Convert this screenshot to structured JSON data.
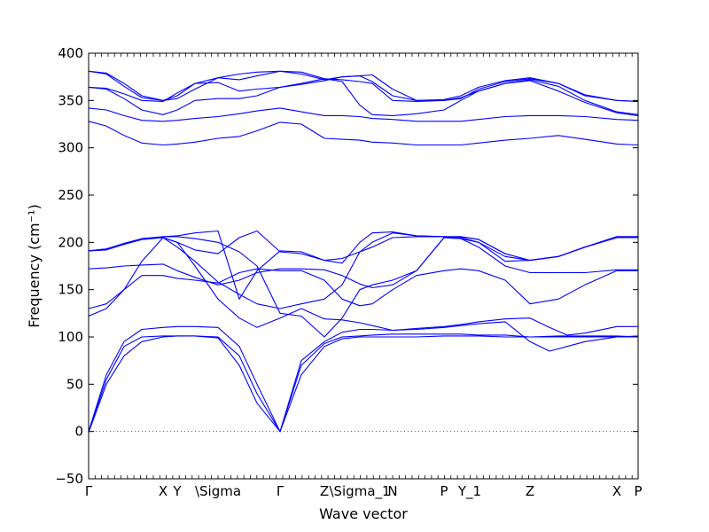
{
  "chart_data": {
    "type": "line",
    "title": "",
    "xlabel": "Wave vector",
    "ylabel": "Frequency (cm⁻¹)",
    "ylim": [
      -50,
      400
    ],
    "yticks": [
      -50,
      0,
      50,
      100,
      150,
      200,
      250,
      300,
      350,
      400
    ],
    "xlim": [
      0,
      620
    ],
    "zero_line": 0,
    "xticks": [
      {
        "label": "Γ",
        "x": 0
      },
      {
        "label": "X",
        "x": 84
      },
      {
        "label": "Y",
        "x": 100
      },
      {
        "label": "\\Sigma",
        "x": 146
      },
      {
        "label": "Γ",
        "x": 216
      },
      {
        "label": "Z",
        "x": 266
      },
      {
        "label": "\\Sigma_1",
        "x": 306
      },
      {
        "label": "N",
        "x": 343
      },
      {
        "label": "P",
        "x": 401
      },
      {
        "label": "Y_1",
        "x": 430
      },
      {
        "label": "Z",
        "x": 498
      },
      {
        "label": "X",
        "x": 596
      },
      {
        "label": "P",
        "x": 620
      }
    ],
    "color": "#0000ff",
    "series": [
      {
        "x": [
          0,
          20,
          40,
          60,
          84,
          100,
          120,
          146,
          170,
          190,
          216,
          240,
          266,
          286,
          306,
          320,
          343,
          370,
          401,
          420,
          440,
          470,
          498,
          530,
          560,
          596,
          620
        ],
        "y": [
          -1,
          50,
          80,
          95,
          100,
          101,
          101,
          100,
          80,
          40,
          0,
          60,
          90,
          98,
          100,
          100,
          100,
          100,
          101,
          101,
          101,
          100,
          100,
          100,
          100,
          100,
          100
        ]
      },
      {
        "x": [
          0,
          20,
          40,
          60,
          84,
          100,
          120,
          146,
          170,
          190,
          216,
          240,
          266,
          286,
          306,
          320,
          343,
          370,
          401,
          420,
          440,
          470,
          498,
          530,
          560,
          596,
          620
        ],
        "y": [
          0,
          55,
          90,
          100,
          101,
          101,
          101,
          99,
          70,
          30,
          0,
          70,
          93,
          100,
          101,
          102,
          103,
          103,
          103,
          103,
          102,
          102,
          100,
          101,
          101,
          101,
          100
        ]
      },
      {
        "x": [
          0,
          20,
          40,
          60,
          84,
          100,
          120,
          146,
          170,
          190,
          216,
          240,
          266,
          286,
          306,
          320,
          343,
          370,
          401,
          420,
          440,
          470,
          498,
          520,
          540,
          560,
          596,
          620
        ],
        "y": [
          0,
          60,
          95,
          108,
          110,
          111,
          111,
          110,
          90,
          50,
          0,
          75,
          95,
          105,
          108,
          108,
          107,
          109,
          111,
          113,
          116,
          119,
          120,
          110,
          102,
          104,
          111,
          111
        ]
      },
      {
        "x": [
          0,
          20,
          40,
          60,
          84,
          100,
          120,
          146,
          170,
          190,
          216,
          240,
          266,
          286,
          306,
          320,
          343,
          370,
          401,
          420,
          440,
          470,
          498,
          520,
          540,
          560,
          596,
          620
        ],
        "y": [
          122,
          130,
          150,
          180,
          205,
          200,
          175,
          140,
          120,
          110,
          120,
          130,
          119,
          118,
          115,
          112,
          107,
          108,
          110,
          112,
          114,
          116,
          95,
          85,
          90,
          95,
          100,
          101
        ]
      },
      {
        "x": [
          0,
          20,
          40,
          60,
          84,
          100,
          120,
          146,
          170,
          190,
          216,
          240,
          266,
          286,
          306,
          320,
          343,
          370,
          401,
          420,
          440,
          470,
          498,
          530,
          560,
          596,
          620
        ],
        "y": [
          130,
          135,
          150,
          165,
          165,
          162,
          160,
          157,
          168,
          172,
          170,
          170,
          160,
          140,
          133,
          135,
          150,
          165,
          170,
          172,
          170,
          160,
          135,
          140,
          155,
          170,
          170
        ]
      },
      {
        "x": [
          0,
          20,
          40,
          60,
          84,
          100,
          120,
          146,
          170,
          190,
          216,
          240,
          266,
          286,
          306,
          320,
          343,
          370,
          401,
          420,
          440,
          470,
          498,
          530,
          560,
          596,
          620
        ],
        "y": [
          172,
          173,
          175,
          176,
          177,
          170,
          163,
          155,
          160,
          168,
          172,
          172,
          171,
          165,
          156,
          152,
          155,
          170,
          205,
          204,
          195,
          175,
          168,
          168,
          168,
          171,
          171
        ]
      },
      {
        "x": [
          0,
          20,
          40,
          60,
          84,
          100,
          120,
          146,
          170,
          190,
          216,
          240,
          266,
          286,
          306,
          320,
          343,
          370,
          401,
          420,
          440,
          470,
          498,
          530,
          560,
          596,
          620
        ],
        "y": [
          191,
          192,
          198,
          203,
          205,
          195,
          180,
          158,
          145,
          135,
          130,
          135,
          140,
          155,
          190,
          195,
          205,
          206,
          206,
          205,
          200,
          180,
          181,
          185,
          195,
          205,
          205
        ]
      },
      {
        "x": [
          0,
          20,
          40,
          60,
          84,
          100,
          120,
          146,
          170,
          190,
          216,
          240,
          266,
          286,
          306,
          320,
          343,
          370,
          401,
          420,
          440,
          470,
          498,
          530,
          560,
          596,
          620
        ],
        "y": [
          191,
          193,
          199,
          204,
          206,
          206,
          204,
          200,
          190,
          175,
          125,
          122,
          100,
          120,
          150,
          155,
          160,
          170,
          205,
          204,
          200,
          185,
          181,
          185,
          195,
          205,
          206
        ]
      },
      {
        "x": [
          0,
          20,
          40,
          60,
          84,
          100,
          120,
          146,
          170,
          190,
          216,
          240,
          266,
          286,
          306,
          320,
          343,
          370,
          401,
          420,
          440,
          470,
          498,
          530,
          560,
          596,
          620
        ],
        "y": [
          191,
          193,
          198,
          203,
          205,
          200,
          192,
          188,
          205,
          212,
          190,
          188,
          181,
          183,
          190,
          200,
          210,
          207,
          206,
          206,
          203,
          188,
          181,
          185,
          195,
          206,
          206
        ]
      },
      {
        "x": [
          0,
          20,
          40,
          60,
          84,
          100,
          120,
          146,
          170,
          190,
          216,
          240,
          266,
          286,
          306,
          320,
          343,
          370,
          401,
          420,
          440,
          470,
          498,
          530,
          560,
          596,
          620
        ],
        "y": [
          191,
          193,
          198,
          203,
          206,
          207,
          210,
          212,
          140,
          170,
          191,
          190,
          181,
          178,
          200,
          210,
          211,
          207,
          206,
          206,
          203,
          188,
          181,
          185,
          195,
          206,
          206
        ]
      },
      {
        "x": [
          0,
          20,
          40,
          60,
          84,
          100,
          120,
          146,
          170,
          190,
          216,
          240,
          266,
          286,
          306,
          320,
          343,
          370,
          401,
          420,
          440,
          470,
          498,
          530,
          560,
          596,
          620
        ],
        "y": [
          328,
          323,
          313,
          305,
          303,
          304,
          306,
          310,
          312,
          318,
          327,
          325,
          310,
          309,
          308,
          306,
          305,
          303,
          303,
          303,
          305,
          308,
          310,
          313,
          309,
          304,
          303
        ]
      },
      {
        "x": [
          0,
          20,
          40,
          60,
          84,
          100,
          120,
          146,
          170,
          190,
          216,
          240,
          266,
          286,
          306,
          320,
          343,
          370,
          401,
          420,
          440,
          470,
          498,
          530,
          560,
          596,
          620
        ],
        "y": [
          342,
          340,
          334,
          329,
          328,
          329,
          331,
          333,
          336,
          339,
          342,
          338,
          334,
          334,
          333,
          331,
          330,
          328,
          328,
          328,
          330,
          333,
          334,
          334,
          333,
          330,
          329
        ]
      },
      {
        "x": [
          0,
          20,
          40,
          60,
          84,
          100,
          120,
          146,
          170,
          190,
          216,
          240,
          266,
          286,
          306,
          320,
          343,
          370,
          401,
          420,
          440,
          470,
          498,
          530,
          560,
          596,
          620
        ],
        "y": [
          364,
          362,
          352,
          340,
          335,
          340,
          350,
          352,
          352,
          355,
          364,
          368,
          373,
          370,
          345,
          335,
          334,
          336,
          340,
          350,
          360,
          368,
          372,
          365,
          350,
          338,
          335
        ]
      },
      {
        "x": [
          0,
          20,
          40,
          60,
          84,
          100,
          120,
          146,
          170,
          190,
          216,
          240,
          266,
          286,
          306,
          320,
          343,
          370,
          401,
          420,
          440,
          470,
          498,
          530,
          560,
          596,
          620
        ],
        "y": [
          364,
          363,
          357,
          350,
          349,
          358,
          368,
          369,
          360,
          362,
          364,
          367,
          371,
          375,
          376,
          370,
          355,
          350,
          350,
          353,
          360,
          368,
          371,
          360,
          348,
          337,
          334
        ]
      },
      {
        "x": [
          0,
          20,
          40,
          60,
          84,
          100,
          120,
          146,
          170,
          190,
          216,
          240,
          266,
          286,
          306,
          320,
          343,
          370,
          401,
          420,
          440,
          470,
          498,
          530,
          560,
          596,
          620
        ],
        "y": [
          381,
          378,
          365,
          353,
          350,
          355,
          368,
          374,
          372,
          376,
          381,
          380,
          373,
          372,
          370,
          368,
          350,
          349,
          350,
          352,
          362,
          370,
          373,
          368,
          355,
          350,
          349
        ]
      },
      {
        "x": [
          0,
          20,
          40,
          60,
          84,
          100,
          120,
          146,
          170,
          190,
          216,
          240,
          266,
          286,
          306,
          320,
          343,
          370,
          401,
          420,
          440,
          470,
          498,
          530,
          560,
          596,
          620
        ],
        "y": [
          381,
          379,
          368,
          355,
          350,
          352,
          362,
          374,
          378,
          380,
          381,
          378,
          372,
          375,
          376,
          377,
          362,
          350,
          351,
          355,
          364,
          371,
          374,
          368,
          356,
          350,
          349
        ]
      }
    ]
  }
}
